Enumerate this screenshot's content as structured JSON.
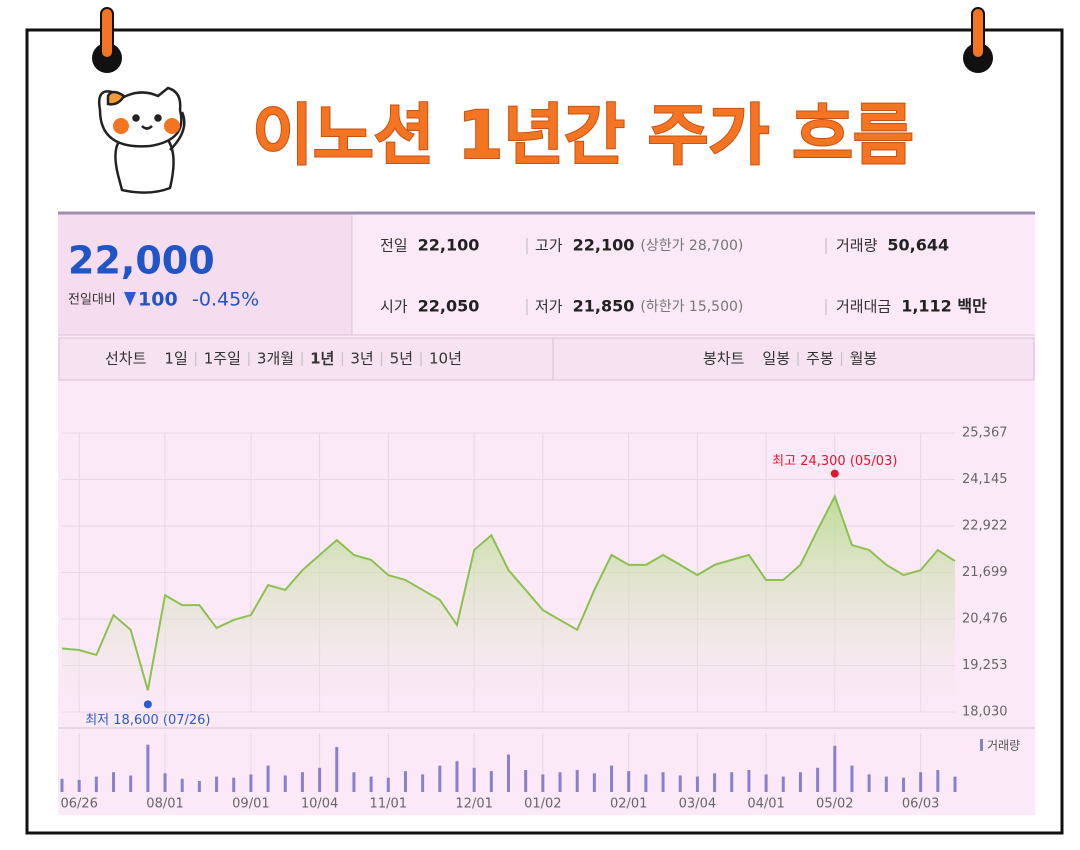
{
  "header": {
    "title": "이노션 1년간 주가 흐름"
  },
  "summary": {
    "price": "22,000",
    "change_label": "전일대비",
    "change": "100",
    "change_pct": "-0.45%",
    "items": [
      {
        "label": "전일",
        "value": "22,100",
        "color": "#222222"
      },
      {
        "label": "고가",
        "value": "22,100",
        "note": "(상한가 28,700)",
        "color": "#222222"
      },
      {
        "label": "거래량",
        "value": "50,644",
        "color": "#222222"
      },
      {
        "label": "시가",
        "value": "22,050",
        "color": "#2a5bd7"
      },
      {
        "label": "저가",
        "value": "21,850",
        "note": "(하한가 15,500)",
        "color": "#2a5bd7"
      },
      {
        "label": "거래대금",
        "value": "1,112 백만",
        "color": "#222222"
      }
    ]
  },
  "tabs": {
    "line_label": "선차트",
    "line_periods": [
      "1일",
      "1주일",
      "3개월",
      "1년",
      "3년",
      "5년",
      "10년"
    ],
    "active_index": 3,
    "candle_label": "봉차트",
    "candle_periods": [
      "일봉",
      "주봉",
      "월봉"
    ]
  },
  "chart_data": {
    "type": "line",
    "categories": [
      null,
      "06/26",
      null,
      null,
      null,
      null,
      "08/01",
      null,
      null,
      null,
      null,
      "09/01",
      null,
      null,
      null,
      "10/04",
      null,
      null,
      null,
      "11/01",
      null,
      null,
      null,
      null,
      "12/01",
      null,
      null,
      null,
      "01/02",
      null,
      null,
      null,
      null,
      "02/01",
      null,
      null,
      null,
      "03/04",
      null,
      null,
      null,
      "04/01",
      null,
      null,
      null,
      "05/02",
      null,
      null,
      null,
      null,
      "06/03",
      null,
      null
    ],
    "color": "#8cc152",
    "values": [
      19700,
      19660,
      19530,
      20580,
      20190,
      18600,
      21100,
      20840,
      20840,
      20240,
      20450,
      20580,
      21370,
      21240,
      21760,
      22160,
      22550,
      22160,
      22030,
      21630,
      21500,
      21240,
      20980,
      20320,
      22290,
      22680,
      21760,
      21240,
      20710,
      20450,
      20190,
      21240,
      22160,
      21900,
      21900,
      22160,
      21900,
      21630,
      21900,
      22030,
      22160,
      21500,
      21500,
      21900,
      22820,
      23700,
      22420,
      22290,
      21900,
      21630,
      21760,
      22290,
      22000
    ],
    "ylim": [
      18030,
      25367
    ],
    "yticks": [
      {
        "value": 18030,
        "label": "18,030"
      },
      {
        "value": 19253,
        "label": "19,253"
      },
      {
        "value": 20476,
        "label": "20,476"
      },
      {
        "value": 21699,
        "label": "21,699"
      },
      {
        "value": 22922,
        "label": "22,922"
      },
      {
        "value": 24145,
        "label": "24,145"
      },
      {
        "value": 25367,
        "label": "25,367"
      }
    ],
    "grid": true,
    "high": {
      "index": 45,
      "value": 24300,
      "label": "최고 24,300 (05/03)",
      "color": "#e0182d"
    },
    "low": {
      "index": 5,
      "value": 18600,
      "label": "최저 18,600 (07/26)",
      "color": "#2a5bd7"
    },
    "volume": {
      "name": "거래량",
      "color": "#8a80c8",
      "ylim": [
        0,
        250000
      ],
      "values": [
        60000,
        55000,
        70000,
        90000,
        75000,
        215000,
        85000,
        60000,
        50000,
        70000,
        65000,
        80000,
        120000,
        75000,
        90000,
        110000,
        205000,
        90000,
        70000,
        65000,
        95000,
        80000,
        120000,
        140000,
        110000,
        95000,
        170000,
        100000,
        80000,
        90000,
        100000,
        85000,
        120000,
        95000,
        80000,
        90000,
        75000,
        70000,
        85000,
        90000,
        100000,
        80000,
        70000,
        90000,
        110000,
        210000,
        120000,
        80000,
        70000,
        65000,
        90000,
        100000,
        70000
      ]
    }
  }
}
